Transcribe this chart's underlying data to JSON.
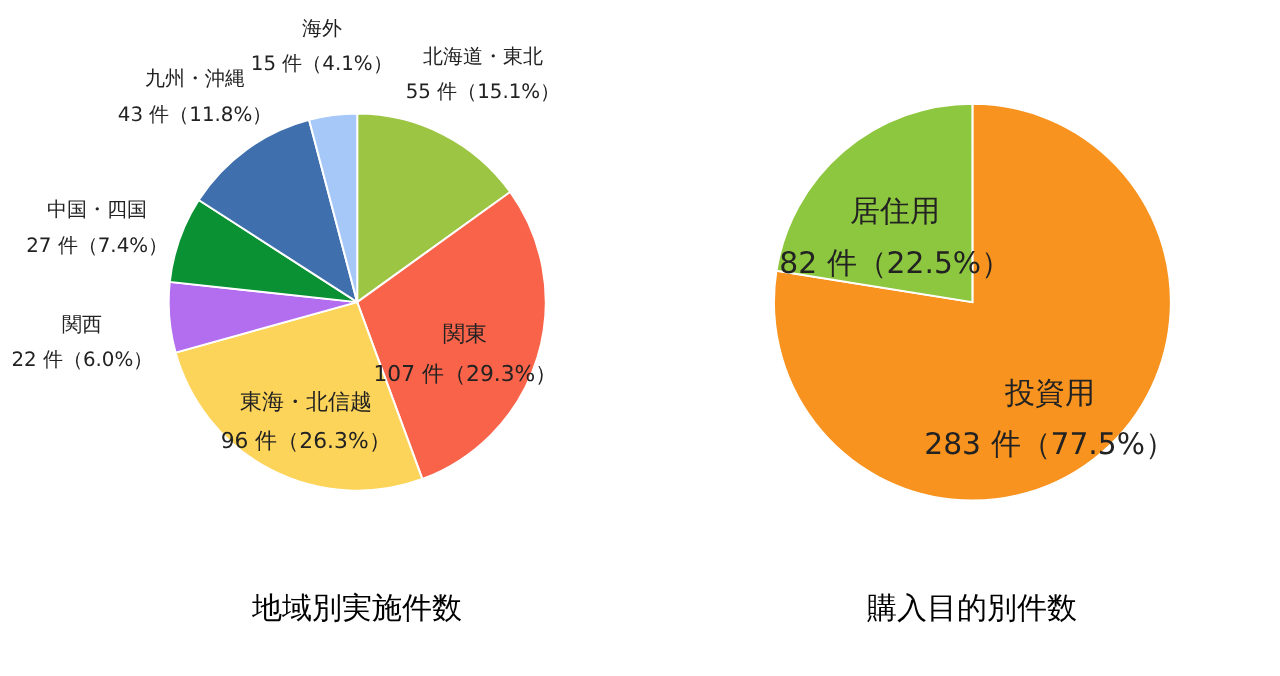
{
  "chart_data": [
    {
      "type": "pie",
      "title": "地域別実施件数",
      "categories": [
        "北海道・東北",
        "関東",
        "東海・北信越",
        "関西",
        "中国・四国",
        "九州・沖縄",
        "海外"
      ],
      "values": [
        55,
        107,
        96,
        22,
        27,
        43,
        15
      ],
      "colors": [
        "#9dc544",
        "#f9634a",
        "#fdd45a",
        "#b36ef0",
        "#0a9134",
        "#3f6fad",
        "#a6c8f8"
      ],
      "value_labels": [
        "55 件（15.1%）",
        "107 件（29.3%）",
        "96 件（26.3%）",
        "22 件（6.0%）",
        "27 件（7.4%）",
        "43 件（11.8%）",
        "15 件（4.1%）"
      ]
    },
    {
      "type": "pie",
      "title": "購入目的別件数",
      "categories": [
        "投資用",
        "居住用"
      ],
      "values": [
        283,
        82
      ],
      "colors": [
        "#f7931e",
        "#8dc63f"
      ],
      "value_labels": [
        "283 件（77.5%）",
        "82 件（22.5%）"
      ]
    }
  ]
}
